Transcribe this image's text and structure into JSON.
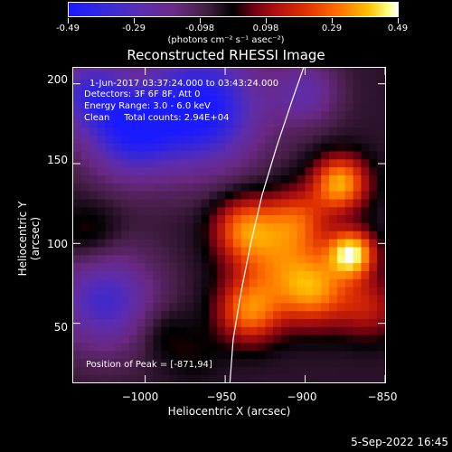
{
  "colorbar": {
    "tick_labels": [
      "-0.49",
      "-0.29",
      "-0.098",
      "0.098",
      "0.29",
      "0.49"
    ],
    "units": "(photons cm⁻² s⁻¹ asec⁻²)"
  },
  "title": "Reconstructed RHESSI Image",
  "annotations": {
    "time_range": "1-Jun-2017 03:37:24.000 to 03:43:24.000",
    "detectors": "Detectors: 3F 6F 8F, Att 0",
    "energy_range": "Energy Range: 3.0 - 6.0 keV",
    "clean_counts": "Clean     Total counts: 2.94E+04",
    "peak_position": "Position of Peak = [-871,94]"
  },
  "axes": {
    "xlabel": "Heliocentric X (arcsec)",
    "ylabel": "Heliocentric Y (arcsec)",
    "x_ticks": [
      "−1000",
      "−950",
      "−900",
      "−850"
    ],
    "y_ticks": [
      "200",
      "150",
      "100",
      "50"
    ]
  },
  "datestamp": "5-Sep-2022 16:45",
  "colors": {
    "background": "#000000",
    "text": "#ffffff",
    "limb_line": "#ffffff"
  },
  "chart_data": {
    "type": "heatmap",
    "title": "Reconstructed RHESSI Image",
    "xlabel": "Heliocentric X (arcsec)",
    "ylabel": "Heliocentric Y (arcsec)",
    "xlim": [
      -1045,
      -850
    ],
    "ylim": [
      13,
      210
    ],
    "x_ticks": [
      -1000,
      -950,
      -900,
      -850
    ],
    "y_ticks": [
      50,
      100,
      150,
      200
    ],
    "colorbar_range": [
      -0.49,
      0.49
    ],
    "colorbar_ticks": [
      -0.49,
      -0.29,
      -0.098,
      0.098,
      0.29,
      0.49
    ],
    "peak": [
      -871,
      94
    ],
    "sources": [
      {
        "x": -871,
        "y": 94,
        "sigma": 10,
        "value": 0.49
      },
      {
        "x": -878,
        "y": 138,
        "sigma": 12,
        "value": 0.4
      },
      {
        "x": -895,
        "y": 72,
        "sigma": 16,
        "value": 0.36
      },
      {
        "x": -935,
        "y": 58,
        "sigma": 14,
        "value": 0.33
      },
      {
        "x": -938,
        "y": 110,
        "sigma": 14,
        "value": 0.3
      },
      {
        "x": -905,
        "y": 115,
        "sigma": 14,
        "value": 0.25
      },
      {
        "x": -920,
        "y": 90,
        "sigma": 18,
        "value": 0.22
      },
      {
        "x": -860,
        "y": 60,
        "sigma": 14,
        "value": 0.18
      },
      {
        "x": -1035,
        "y": 105,
        "sigma": 14,
        "value": 0.1
      },
      {
        "x": -990,
        "y": 45,
        "sigma": 12,
        "value": 0.08
      },
      {
        "x": -970,
        "y": 30,
        "sigma": 12,
        "value": 0.05
      },
      {
        "x": -965,
        "y": 185,
        "sigma": 26,
        "value": -0.45
      },
      {
        "x": -1010,
        "y": 170,
        "sigma": 20,
        "value": -0.35
      },
      {
        "x": -1025,
        "y": 65,
        "sigma": 22,
        "value": -0.3
      },
      {
        "x": -1035,
        "y": 195,
        "sigma": 16,
        "value": -0.28
      },
      {
        "x": -900,
        "y": 195,
        "sigma": 14,
        "value": -0.2
      }
    ],
    "limb_curve": [
      [
        -947,
        13
      ],
      [
        -945,
        40
      ],
      [
        -940,
        70
      ],
      [
        -934,
        100
      ],
      [
        -927,
        130
      ],
      [
        -918,
        160
      ],
      [
        -908,
        190
      ],
      [
        -901,
        210
      ]
    ]
  }
}
